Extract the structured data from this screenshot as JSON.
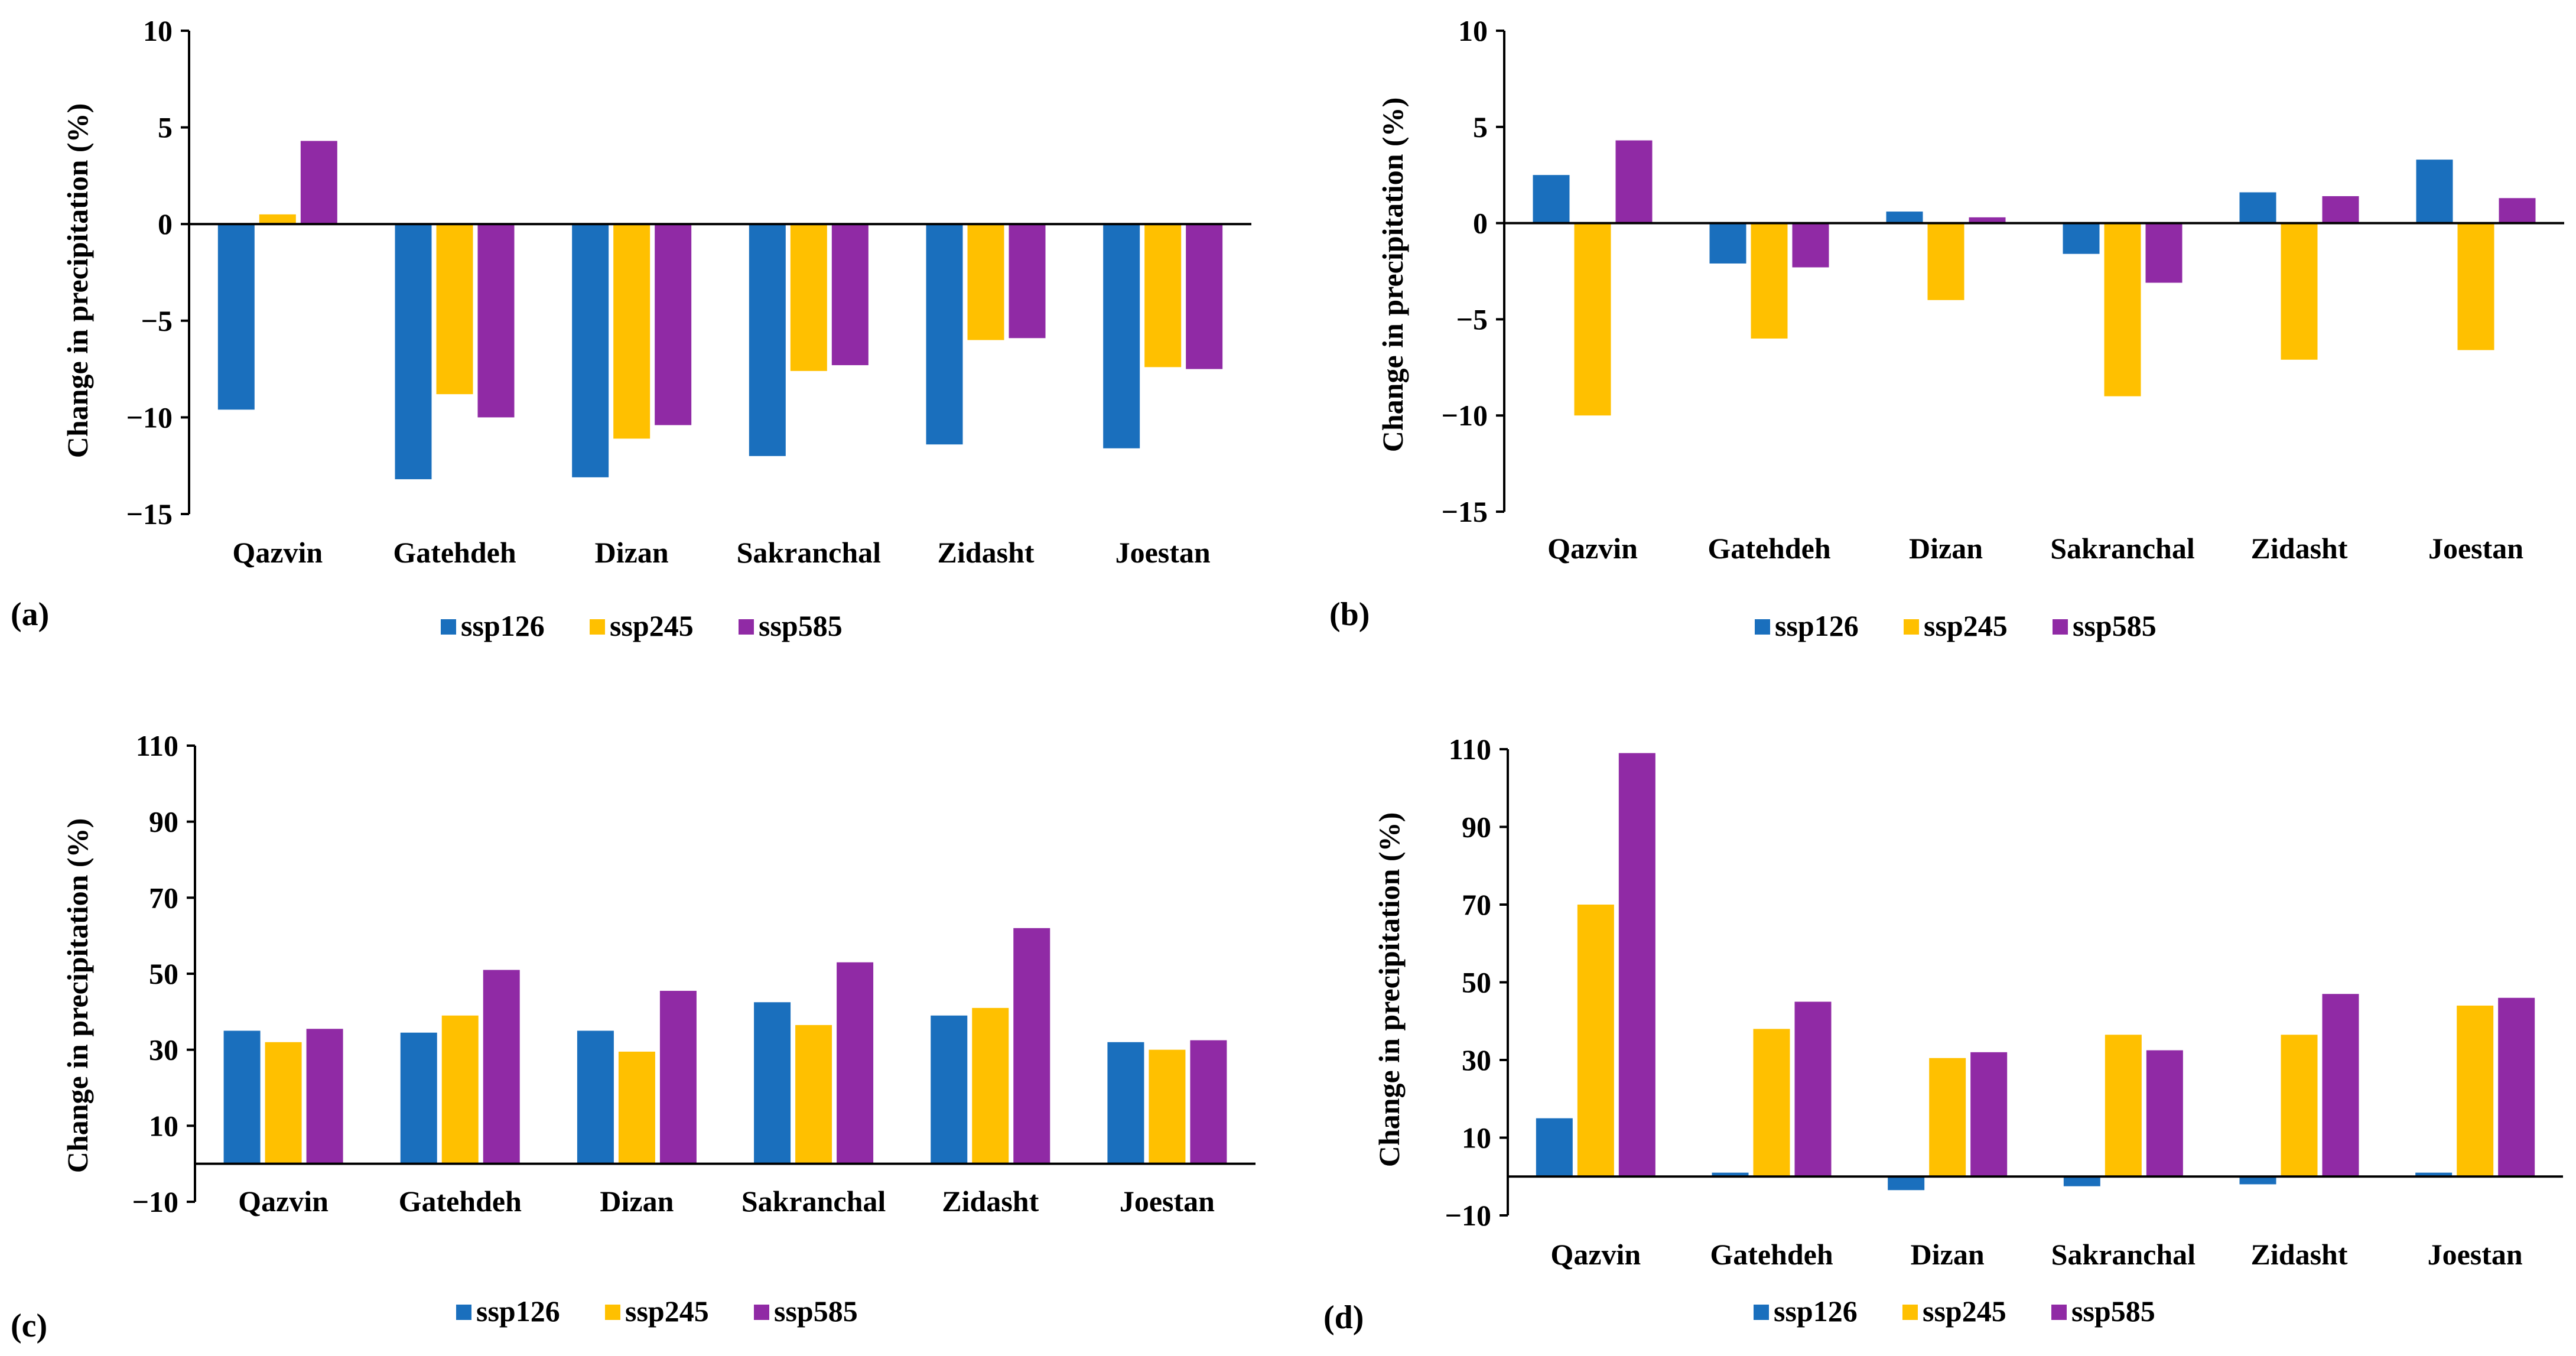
{
  "chart_data": [
    {
      "type": "bar",
      "panel_label": "(a)",
      "ylabel": "Change in precipitation (%)",
      "ylim": [
        -15,
        10
      ],
      "yticks": [
        10,
        5,
        0,
        -5,
        -10,
        -15
      ],
      "ytick_labels": [
        "10",
        "5",
        "0",
        "−5",
        "−10",
        "−15"
      ],
      "categories": [
        "Qazvin",
        "Gatehdeh",
        "Dizan",
        "Sakranchal",
        "Zidasht",
        "Joestan"
      ],
      "series": [
        {
          "name": "ssp126",
          "color": "#1a6fbd",
          "values": [
            -9.6,
            -13.2,
            -13.1,
            -12.0,
            -11.4,
            -11.6
          ]
        },
        {
          "name": "ssp245",
          "color": "#ffc000",
          "values": [
            0.5,
            -8.8,
            -11.1,
            -7.6,
            -6.0,
            -7.4
          ]
        },
        {
          "name": "ssp585",
          "color": "#902aa5",
          "values": [
            4.3,
            -10.0,
            -10.4,
            -7.3,
            -5.9,
            -7.5
          ]
        }
      ],
      "legend": [
        "ssp126",
        "ssp245",
        "ssp585"
      ]
    },
    {
      "type": "bar",
      "panel_label": "(b)",
      "ylabel": "Change in precipitation (%)",
      "ylim": [
        -15,
        10
      ],
      "yticks": [
        10,
        5,
        0,
        -5,
        -10,
        -15
      ],
      "ytick_labels": [
        "10",
        "5",
        "0",
        "−5",
        "−10",
        "−15"
      ],
      "categories": [
        "Qazvin",
        "Gatehdeh",
        "Dizan",
        "Sakranchal",
        "Zidasht",
        "Joestan"
      ],
      "series": [
        {
          "name": "ssp126",
          "color": "#1a6fbd",
          "values": [
            2.5,
            -2.1,
            0.6,
            -1.6,
            1.6,
            3.3
          ]
        },
        {
          "name": "ssp245",
          "color": "#ffc000",
          "values": [
            -10.0,
            -6.0,
            -4.0,
            -9.0,
            -7.1,
            -6.6
          ]
        },
        {
          "name": "ssp585",
          "color": "#902aa5",
          "values": [
            4.3,
            -2.3,
            0.3,
            -3.1,
            1.4,
            1.3
          ]
        }
      ],
      "legend": [
        "ssp126",
        "ssp245",
        "ssp585"
      ]
    },
    {
      "type": "bar",
      "panel_label": "(c)",
      "ylabel": "Change in precipitation (%)",
      "ylim": [
        -10,
        110
      ],
      "yticks": [
        110,
        90,
        70,
        50,
        30,
        10,
        -10
      ],
      "ytick_labels": [
        "110",
        "90",
        "70",
        "50",
        "30",
        "10",
        "−10"
      ],
      "categories": [
        "Qazvin",
        "Gatehdeh",
        "Dizan",
        "Sakranchal",
        "Zidasht",
        "Joestan"
      ],
      "series": [
        {
          "name": "ssp126",
          "color": "#1a6fbd",
          "values": [
            35.0,
            34.5,
            35.0,
            42.5,
            39.0,
            32.0
          ]
        },
        {
          "name": "ssp245",
          "color": "#ffc000",
          "values": [
            32.0,
            39.0,
            29.5,
            36.5,
            41.0,
            30.0
          ]
        },
        {
          "name": "ssp585",
          "color": "#902aa5",
          "values": [
            35.5,
            51.0,
            45.5,
            53.0,
            62.0,
            32.5
          ]
        }
      ],
      "legend": [
        "ssp126",
        "ssp245",
        "ssp585"
      ]
    },
    {
      "type": "bar",
      "panel_label": "(d)",
      "ylabel": "Change in precipitation (%)",
      "ylim": [
        -10,
        110
      ],
      "yticks": [
        110,
        90,
        70,
        50,
        30,
        10,
        -10
      ],
      "ytick_labels": [
        "110",
        "90",
        "70",
        "50",
        "30",
        "10",
        "−10"
      ],
      "categories": [
        "Qazvin",
        "Gatehdeh",
        "Dizan",
        "Sakranchal",
        "Zidasht",
        "Joestan"
      ],
      "series": [
        {
          "name": "ssp126",
          "color": "#1a6fbd",
          "values": [
            15.0,
            1.0,
            -3.5,
            -2.5,
            -2.0,
            1.0
          ]
        },
        {
          "name": "ssp245",
          "color": "#ffc000",
          "values": [
            70.0,
            38.0,
            30.5,
            36.5,
            36.5,
            44.0
          ]
        },
        {
          "name": "ssp585",
          "color": "#902aa5",
          "values": [
            109.0,
            45.0,
            32.0,
            32.5,
            47.0,
            46.0
          ]
        }
      ],
      "legend": [
        "ssp126",
        "ssp245",
        "ssp585"
      ]
    }
  ]
}
